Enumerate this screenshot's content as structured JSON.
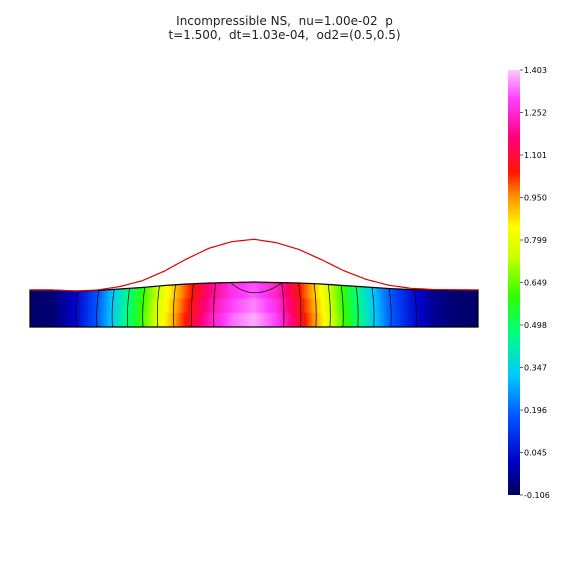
{
  "chart_data": {
    "type": "heatmap",
    "title": "Incompressible NS,  nu=1.00e-02  p",
    "subtitle": "t=1.500,  dt=1.03e-04,  od2=(0.5,0.5)",
    "field": "p",
    "colorbar": {
      "min": -0.106,
      "max": 1.403,
      "ticks": [
        "1.403",
        "1.252",
        "1.101",
        "0.950",
        "0.799",
        "0.649",
        "0.498",
        "0.347",
        "0.196",
        "0.045",
        "-0.106"
      ]
    },
    "domain": {
      "x_range": [
        0,
        1
      ],
      "depth": 1
    },
    "pressure_profile": {
      "x": [
        0.0,
        0.05,
        0.1,
        0.15,
        0.2,
        0.25,
        0.3,
        0.35,
        0.4,
        0.45,
        0.5,
        0.55,
        0.6,
        0.65,
        0.7,
        0.75,
        0.8,
        0.85,
        0.9,
        0.95,
        1.0
      ],
      "value": [
        -0.09,
        -0.08,
        0.02,
        0.18,
        0.4,
        0.62,
        0.85,
        1.05,
        1.22,
        1.33,
        1.38,
        1.3,
        1.1,
        0.88,
        0.62,
        0.4,
        0.2,
        0.06,
        -0.04,
        -0.08,
        -0.09
      ]
    },
    "free_surface": {
      "x": [
        0.0,
        0.05,
        0.1,
        0.15,
        0.2,
        0.25,
        0.3,
        0.35,
        0.4,
        0.45,
        0.5,
        0.55,
        0.6,
        0.65,
        0.7,
        0.75,
        0.8,
        0.85,
        0.9,
        0.95,
        1.0
      ],
      "height": [
        0.0,
        0.0,
        -0.02,
        -0.01,
        0.02,
        0.05,
        0.09,
        0.12,
        0.14,
        0.15,
        0.16,
        0.15,
        0.14,
        0.12,
        0.09,
        0.06,
        0.03,
        0.01,
        0.0,
        0.0,
        0.0
      ]
    },
    "surface_pressure_curve": {
      "x": [
        0.0,
        0.05,
        0.1,
        0.15,
        0.2,
        0.25,
        0.3,
        0.35,
        0.4,
        0.45,
        0.5,
        0.55,
        0.6,
        0.65,
        0.7,
        0.75,
        0.8,
        0.85,
        0.9,
        0.95,
        1.0
      ],
      "height": [
        0.0,
        0.0,
        0.0,
        0.02,
        0.1,
        0.28,
        0.6,
        1.05,
        1.45,
        1.7,
        1.78,
        1.66,
        1.4,
        1.02,
        0.62,
        0.32,
        0.14,
        0.05,
        0.02,
        0.01,
        0.0
      ]
    },
    "contour_levels": [
      0.045,
      0.196,
      0.347,
      0.498,
      0.649,
      0.799,
      0.95,
      1.101,
      1.252
    ]
  }
}
